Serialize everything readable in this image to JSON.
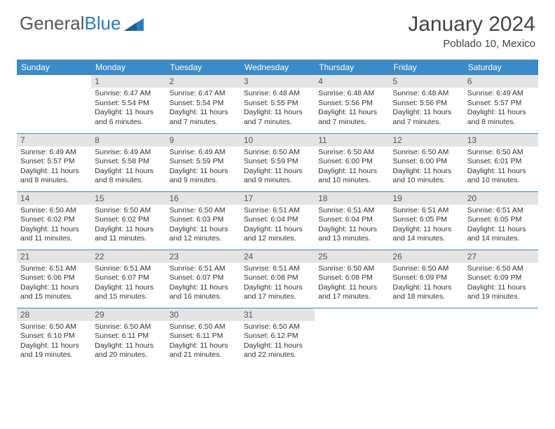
{
  "logo": {
    "text1": "General",
    "text2": "Blue"
  },
  "title": "January 2024",
  "location": "Poblado 10, Mexico",
  "weekday_header_bg": "#3b8bc9",
  "weekday_header_fg": "#ffffff",
  "daynum_bg": "#e4e4e4",
  "weekdays": [
    "Sunday",
    "Monday",
    "Tuesday",
    "Wednesday",
    "Thursday",
    "Friday",
    "Saturday"
  ],
  "weeks": [
    [
      {
        "n": "",
        "sunrise": "",
        "sunset": "",
        "daylight": ""
      },
      {
        "n": "1",
        "sunrise": "Sunrise: 6:47 AM",
        "sunset": "Sunset: 5:54 PM",
        "daylight": "Daylight: 11 hours and 6 minutes."
      },
      {
        "n": "2",
        "sunrise": "Sunrise: 6:47 AM",
        "sunset": "Sunset: 5:54 PM",
        "daylight": "Daylight: 11 hours and 7 minutes."
      },
      {
        "n": "3",
        "sunrise": "Sunrise: 6:48 AM",
        "sunset": "Sunset: 5:55 PM",
        "daylight": "Daylight: 11 hours and 7 minutes."
      },
      {
        "n": "4",
        "sunrise": "Sunrise: 6:48 AM",
        "sunset": "Sunset: 5:56 PM",
        "daylight": "Daylight: 11 hours and 7 minutes."
      },
      {
        "n": "5",
        "sunrise": "Sunrise: 6:48 AM",
        "sunset": "Sunset: 5:56 PM",
        "daylight": "Daylight: 11 hours and 7 minutes."
      },
      {
        "n": "6",
        "sunrise": "Sunrise: 6:49 AM",
        "sunset": "Sunset: 5:57 PM",
        "daylight": "Daylight: 11 hours and 8 minutes."
      }
    ],
    [
      {
        "n": "7",
        "sunrise": "Sunrise: 6:49 AM",
        "sunset": "Sunset: 5:57 PM",
        "daylight": "Daylight: 11 hours and 8 minutes."
      },
      {
        "n": "8",
        "sunrise": "Sunrise: 6:49 AM",
        "sunset": "Sunset: 5:58 PM",
        "daylight": "Daylight: 11 hours and 8 minutes."
      },
      {
        "n": "9",
        "sunrise": "Sunrise: 6:49 AM",
        "sunset": "Sunset: 5:59 PM",
        "daylight": "Daylight: 11 hours and 9 minutes."
      },
      {
        "n": "10",
        "sunrise": "Sunrise: 6:50 AM",
        "sunset": "Sunset: 5:59 PM",
        "daylight": "Daylight: 11 hours and 9 minutes."
      },
      {
        "n": "11",
        "sunrise": "Sunrise: 6:50 AM",
        "sunset": "Sunset: 6:00 PM",
        "daylight": "Daylight: 11 hours and 10 minutes."
      },
      {
        "n": "12",
        "sunrise": "Sunrise: 6:50 AM",
        "sunset": "Sunset: 6:00 PM",
        "daylight": "Daylight: 11 hours and 10 minutes."
      },
      {
        "n": "13",
        "sunrise": "Sunrise: 6:50 AM",
        "sunset": "Sunset: 6:01 PM",
        "daylight": "Daylight: 11 hours and 10 minutes."
      }
    ],
    [
      {
        "n": "14",
        "sunrise": "Sunrise: 6:50 AM",
        "sunset": "Sunset: 6:02 PM",
        "daylight": "Daylight: 11 hours and 11 minutes."
      },
      {
        "n": "15",
        "sunrise": "Sunrise: 6:50 AM",
        "sunset": "Sunset: 6:02 PM",
        "daylight": "Daylight: 11 hours and 11 minutes."
      },
      {
        "n": "16",
        "sunrise": "Sunrise: 6:50 AM",
        "sunset": "Sunset: 6:03 PM",
        "daylight": "Daylight: 11 hours and 12 minutes."
      },
      {
        "n": "17",
        "sunrise": "Sunrise: 6:51 AM",
        "sunset": "Sunset: 6:04 PM",
        "daylight": "Daylight: 11 hours and 12 minutes."
      },
      {
        "n": "18",
        "sunrise": "Sunrise: 6:51 AM",
        "sunset": "Sunset: 6:04 PM",
        "daylight": "Daylight: 11 hours and 13 minutes."
      },
      {
        "n": "19",
        "sunrise": "Sunrise: 6:51 AM",
        "sunset": "Sunset: 6:05 PM",
        "daylight": "Daylight: 11 hours and 14 minutes."
      },
      {
        "n": "20",
        "sunrise": "Sunrise: 6:51 AM",
        "sunset": "Sunset: 6:05 PM",
        "daylight": "Daylight: 11 hours and 14 minutes."
      }
    ],
    [
      {
        "n": "21",
        "sunrise": "Sunrise: 6:51 AM",
        "sunset": "Sunset: 6:06 PM",
        "daylight": "Daylight: 11 hours and 15 minutes."
      },
      {
        "n": "22",
        "sunrise": "Sunrise: 6:51 AM",
        "sunset": "Sunset: 6:07 PM",
        "daylight": "Daylight: 11 hours and 15 minutes."
      },
      {
        "n": "23",
        "sunrise": "Sunrise: 6:51 AM",
        "sunset": "Sunset: 6:07 PM",
        "daylight": "Daylight: 11 hours and 16 minutes."
      },
      {
        "n": "24",
        "sunrise": "Sunrise: 6:51 AM",
        "sunset": "Sunset: 6:08 PM",
        "daylight": "Daylight: 11 hours and 17 minutes."
      },
      {
        "n": "25",
        "sunrise": "Sunrise: 6:50 AM",
        "sunset": "Sunset: 6:08 PM",
        "daylight": "Daylight: 11 hours and 17 minutes."
      },
      {
        "n": "26",
        "sunrise": "Sunrise: 6:50 AM",
        "sunset": "Sunset: 6:09 PM",
        "daylight": "Daylight: 11 hours and 18 minutes."
      },
      {
        "n": "27",
        "sunrise": "Sunrise: 6:50 AM",
        "sunset": "Sunset: 6:09 PM",
        "daylight": "Daylight: 11 hours and 19 minutes."
      }
    ],
    [
      {
        "n": "28",
        "sunrise": "Sunrise: 6:50 AM",
        "sunset": "Sunset: 6:10 PM",
        "daylight": "Daylight: 11 hours and 19 minutes."
      },
      {
        "n": "29",
        "sunrise": "Sunrise: 6:50 AM",
        "sunset": "Sunset: 6:11 PM",
        "daylight": "Daylight: 11 hours and 20 minutes."
      },
      {
        "n": "30",
        "sunrise": "Sunrise: 6:50 AM",
        "sunset": "Sunset: 6:11 PM",
        "daylight": "Daylight: 11 hours and 21 minutes."
      },
      {
        "n": "31",
        "sunrise": "Sunrise: 6:50 AM",
        "sunset": "Sunset: 6:12 PM",
        "daylight": "Daylight: 11 hours and 22 minutes."
      },
      {
        "n": "",
        "sunrise": "",
        "sunset": "",
        "daylight": ""
      },
      {
        "n": "",
        "sunrise": "",
        "sunset": "",
        "daylight": ""
      },
      {
        "n": "",
        "sunrise": "",
        "sunset": "",
        "daylight": ""
      }
    ]
  ]
}
